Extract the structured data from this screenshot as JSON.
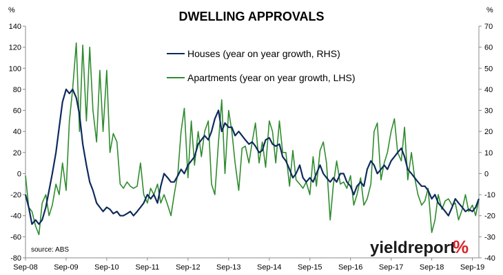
{
  "chart_data": {
    "type": "line",
    "title": "DWELLING APPROVALS",
    "left_axis_unit": "%",
    "right_axis_unit": "%",
    "left_ylim": [
      -80,
      140
    ],
    "right_ylim": [
      -40,
      70
    ],
    "left_ticks": [
      140,
      120,
      100,
      80,
      60,
      40,
      20,
      0,
      -20,
      -40,
      -60,
      -80
    ],
    "right_ticks": [
      70,
      60,
      50,
      40,
      30,
      20,
      10,
      0,
      -10,
      -20,
      -30,
      -40
    ],
    "x_tick_labels": [
      "Sep-08",
      "Sep-09",
      "Sep-10",
      "Sep-11",
      "Sep-12",
      "Sep-13",
      "Sep-14",
      "Sep-15",
      "Sep-16",
      "Sep-17",
      "Sep-18",
      "Sep-19"
    ],
    "x_range_years": [
      2008.67,
      2019.83
    ],
    "grid": false,
    "legend_position": "top-center",
    "source": "source: ABS",
    "brand": {
      "text": "yieldreport",
      "symbol": "%"
    },
    "series": [
      {
        "name": "Houses (year on year growth, RHS)",
        "axis": "right",
        "color": "#0e2a5c",
        "x": [
          2008.67,
          2008.75,
          2008.83,
          2008.92,
          2009.0,
          2009.08,
          2009.17,
          2009.25,
          2009.33,
          2009.42,
          2009.5,
          2009.58,
          2009.67,
          2009.75,
          2009.83,
          2009.92,
          2010.0,
          2010.08,
          2010.17,
          2010.25,
          2010.33,
          2010.42,
          2010.5,
          2010.58,
          2010.67,
          2010.75,
          2010.83,
          2010.92,
          2011.0,
          2011.08,
          2011.17,
          2011.25,
          2011.33,
          2011.42,
          2011.5,
          2011.58,
          2011.67,
          2011.75,
          2011.83,
          2011.92,
          2012.0,
          2012.08,
          2012.17,
          2012.25,
          2012.33,
          2012.42,
          2012.5,
          2012.58,
          2012.67,
          2012.75,
          2012.83,
          2012.92,
          2013.0,
          2013.08,
          2013.17,
          2013.25,
          2013.33,
          2013.42,
          2013.5,
          2013.58,
          2013.67,
          2013.75,
          2013.83,
          2013.92,
          2014.0,
          2014.08,
          2014.17,
          2014.25,
          2014.33,
          2014.42,
          2014.5,
          2014.58,
          2014.67,
          2014.75,
          2014.83,
          2014.92,
          2015.0,
          2015.08,
          2015.17,
          2015.25,
          2015.33,
          2015.42,
          2015.5,
          2015.58,
          2015.67,
          2015.75,
          2015.83,
          2015.92,
          2016.0,
          2016.08,
          2016.17,
          2016.25,
          2016.33,
          2016.42,
          2016.5,
          2016.58,
          2016.67,
          2016.75,
          2016.83,
          2016.92,
          2017.0,
          2017.08,
          2017.17,
          2017.25,
          2017.33,
          2017.42,
          2017.5,
          2017.58,
          2017.67,
          2017.75,
          2017.83,
          2017.92,
          2018.0,
          2018.08,
          2018.17,
          2018.25,
          2018.33,
          2018.42,
          2018.5,
          2018.58,
          2018.67,
          2018.75,
          2018.83,
          2018.92,
          2019.0,
          2019.08,
          2019.17,
          2019.25,
          2019.33,
          2019.42,
          2019.5,
          2019.58,
          2019.67,
          2019.75,
          2019.83
        ],
        "values": [
          -10,
          -16,
          -24,
          -22,
          -24,
          -22,
          -16,
          -8,
          0,
          10,
          22,
          34,
          40,
          38,
          40,
          36,
          28,
          14,
          4,
          -4,
          -8,
          -14,
          -16,
          -18,
          -16,
          -17,
          -19,
          -18,
          -20,
          -20,
          -19,
          -18,
          -20,
          -18,
          -16,
          -14,
          -10,
          -12,
          -10,
          -14,
          -6,
          0,
          -2,
          -4,
          -4,
          -1,
          2,
          0,
          4,
          6,
          8,
          14,
          16,
          18,
          16,
          20,
          26,
          30,
          20,
          24,
          22,
          22,
          18,
          20,
          18,
          16,
          14,
          15,
          13,
          10,
          11,
          16,
          17,
          14,
          13,
          14,
          8,
          6,
          2,
          -2,
          0,
          4,
          -2,
          -4,
          -2,
          -4,
          0,
          4,
          0,
          -2,
          -4,
          -2,
          -4,
          0,
          0,
          -4,
          -6,
          -10,
          -6,
          -4,
          -6,
          2,
          6,
          4,
          0,
          2,
          4,
          2,
          6,
          8,
          10,
          12,
          8,
          2,
          0,
          -2,
          -4,
          -6,
          -6,
          -8,
          -12,
          -10,
          -14,
          -16,
          -18,
          -20,
          -16,
          -12,
          -14,
          -16,
          -18,
          -17,
          -18,
          -16,
          -12
        ]
      },
      {
        "name": "Apartments (year on year growth, LHS)",
        "axis": "left",
        "color": "#2e8b2e",
        "x": [
          2008.67,
          2008.75,
          2008.83,
          2008.92,
          2009.0,
          2009.08,
          2009.17,
          2009.25,
          2009.33,
          2009.42,
          2009.5,
          2009.58,
          2009.67,
          2009.75,
          2009.83,
          2009.92,
          2010.0,
          2010.08,
          2010.17,
          2010.25,
          2010.33,
          2010.42,
          2010.5,
          2010.58,
          2010.67,
          2010.75,
          2010.83,
          2010.92,
          2011.0,
          2011.08,
          2011.17,
          2011.25,
          2011.33,
          2011.42,
          2011.5,
          2011.58,
          2011.67,
          2011.75,
          2011.83,
          2011.92,
          2012.0,
          2012.08,
          2012.17,
          2012.25,
          2012.33,
          2012.42,
          2012.5,
          2012.58,
          2012.67,
          2012.75,
          2012.83,
          2012.92,
          2013.0,
          2013.08,
          2013.17,
          2013.25,
          2013.33,
          2013.42,
          2013.5,
          2013.58,
          2013.67,
          2013.75,
          2013.83,
          2013.92,
          2014.0,
          2014.08,
          2014.17,
          2014.25,
          2014.33,
          2014.42,
          2014.5,
          2014.58,
          2014.67,
          2014.75,
          2014.83,
          2014.92,
          2015.0,
          2015.08,
          2015.17,
          2015.25,
          2015.33,
          2015.42,
          2015.5,
          2015.58,
          2015.67,
          2015.75,
          2015.83,
          2015.92,
          2016.0,
          2016.08,
          2016.17,
          2016.25,
          2016.33,
          2016.42,
          2016.5,
          2016.58,
          2016.67,
          2016.75,
          2016.83,
          2016.92,
          2017.0,
          2017.08,
          2017.17,
          2017.25,
          2017.33,
          2017.42,
          2017.5,
          2017.58,
          2017.67,
          2017.75,
          2017.83,
          2017.92,
          2018.0,
          2018.08,
          2018.17,
          2018.25,
          2018.33,
          2018.42,
          2018.5,
          2018.58,
          2018.67,
          2018.75,
          2018.83,
          2018.92,
          2019.0,
          2019.08,
          2019.17,
          2019.25,
          2019.33,
          2019.42,
          2019.5,
          2019.58,
          2019.67,
          2019.75,
          2019.83
        ],
        "values": [
          -2,
          -32,
          -36,
          -50,
          -58,
          -28,
          -20,
          -40,
          -30,
          -10,
          -20,
          10,
          -16,
          50,
          80,
          124,
          40,
          122,
          50,
          120,
          60,
          30,
          98,
          40,
          98,
          20,
          38,
          30,
          -10,
          -14,
          -8,
          -12,
          -14,
          -12,
          10,
          -20,
          -28,
          -14,
          -20,
          -10,
          -28,
          -20,
          -30,
          -40,
          -20,
          0,
          40,
          62,
          -4,
          50,
          8,
          40,
          16,
          40,
          50,
          -10,
          -20,
          30,
          70,
          0,
          60,
          40,
          10,
          -16,
          24,
          26,
          10,
          30,
          48,
          10,
          30,
          6,
          50,
          40,
          10,
          50,
          20,
          20,
          -12,
          22,
          -6,
          -10,
          -14,
          -8,
          -20,
          16,
          -12,
          22,
          30,
          10,
          -44,
          -10,
          12,
          -10,
          -8,
          -14,
          -2,
          -30,
          -20,
          -4,
          -30,
          -24,
          -10,
          40,
          48,
          -6,
          10,
          20,
          40,
          52,
          20,
          12,
          44,
          -6,
          20,
          -4,
          -20,
          -30,
          -26,
          -14,
          -56,
          -44,
          -20,
          -34,
          -26,
          -24,
          -30,
          -28,
          -44,
          -34,
          -20,
          -36,
          -30,
          -40,
          -24
        ]
      }
    ]
  }
}
